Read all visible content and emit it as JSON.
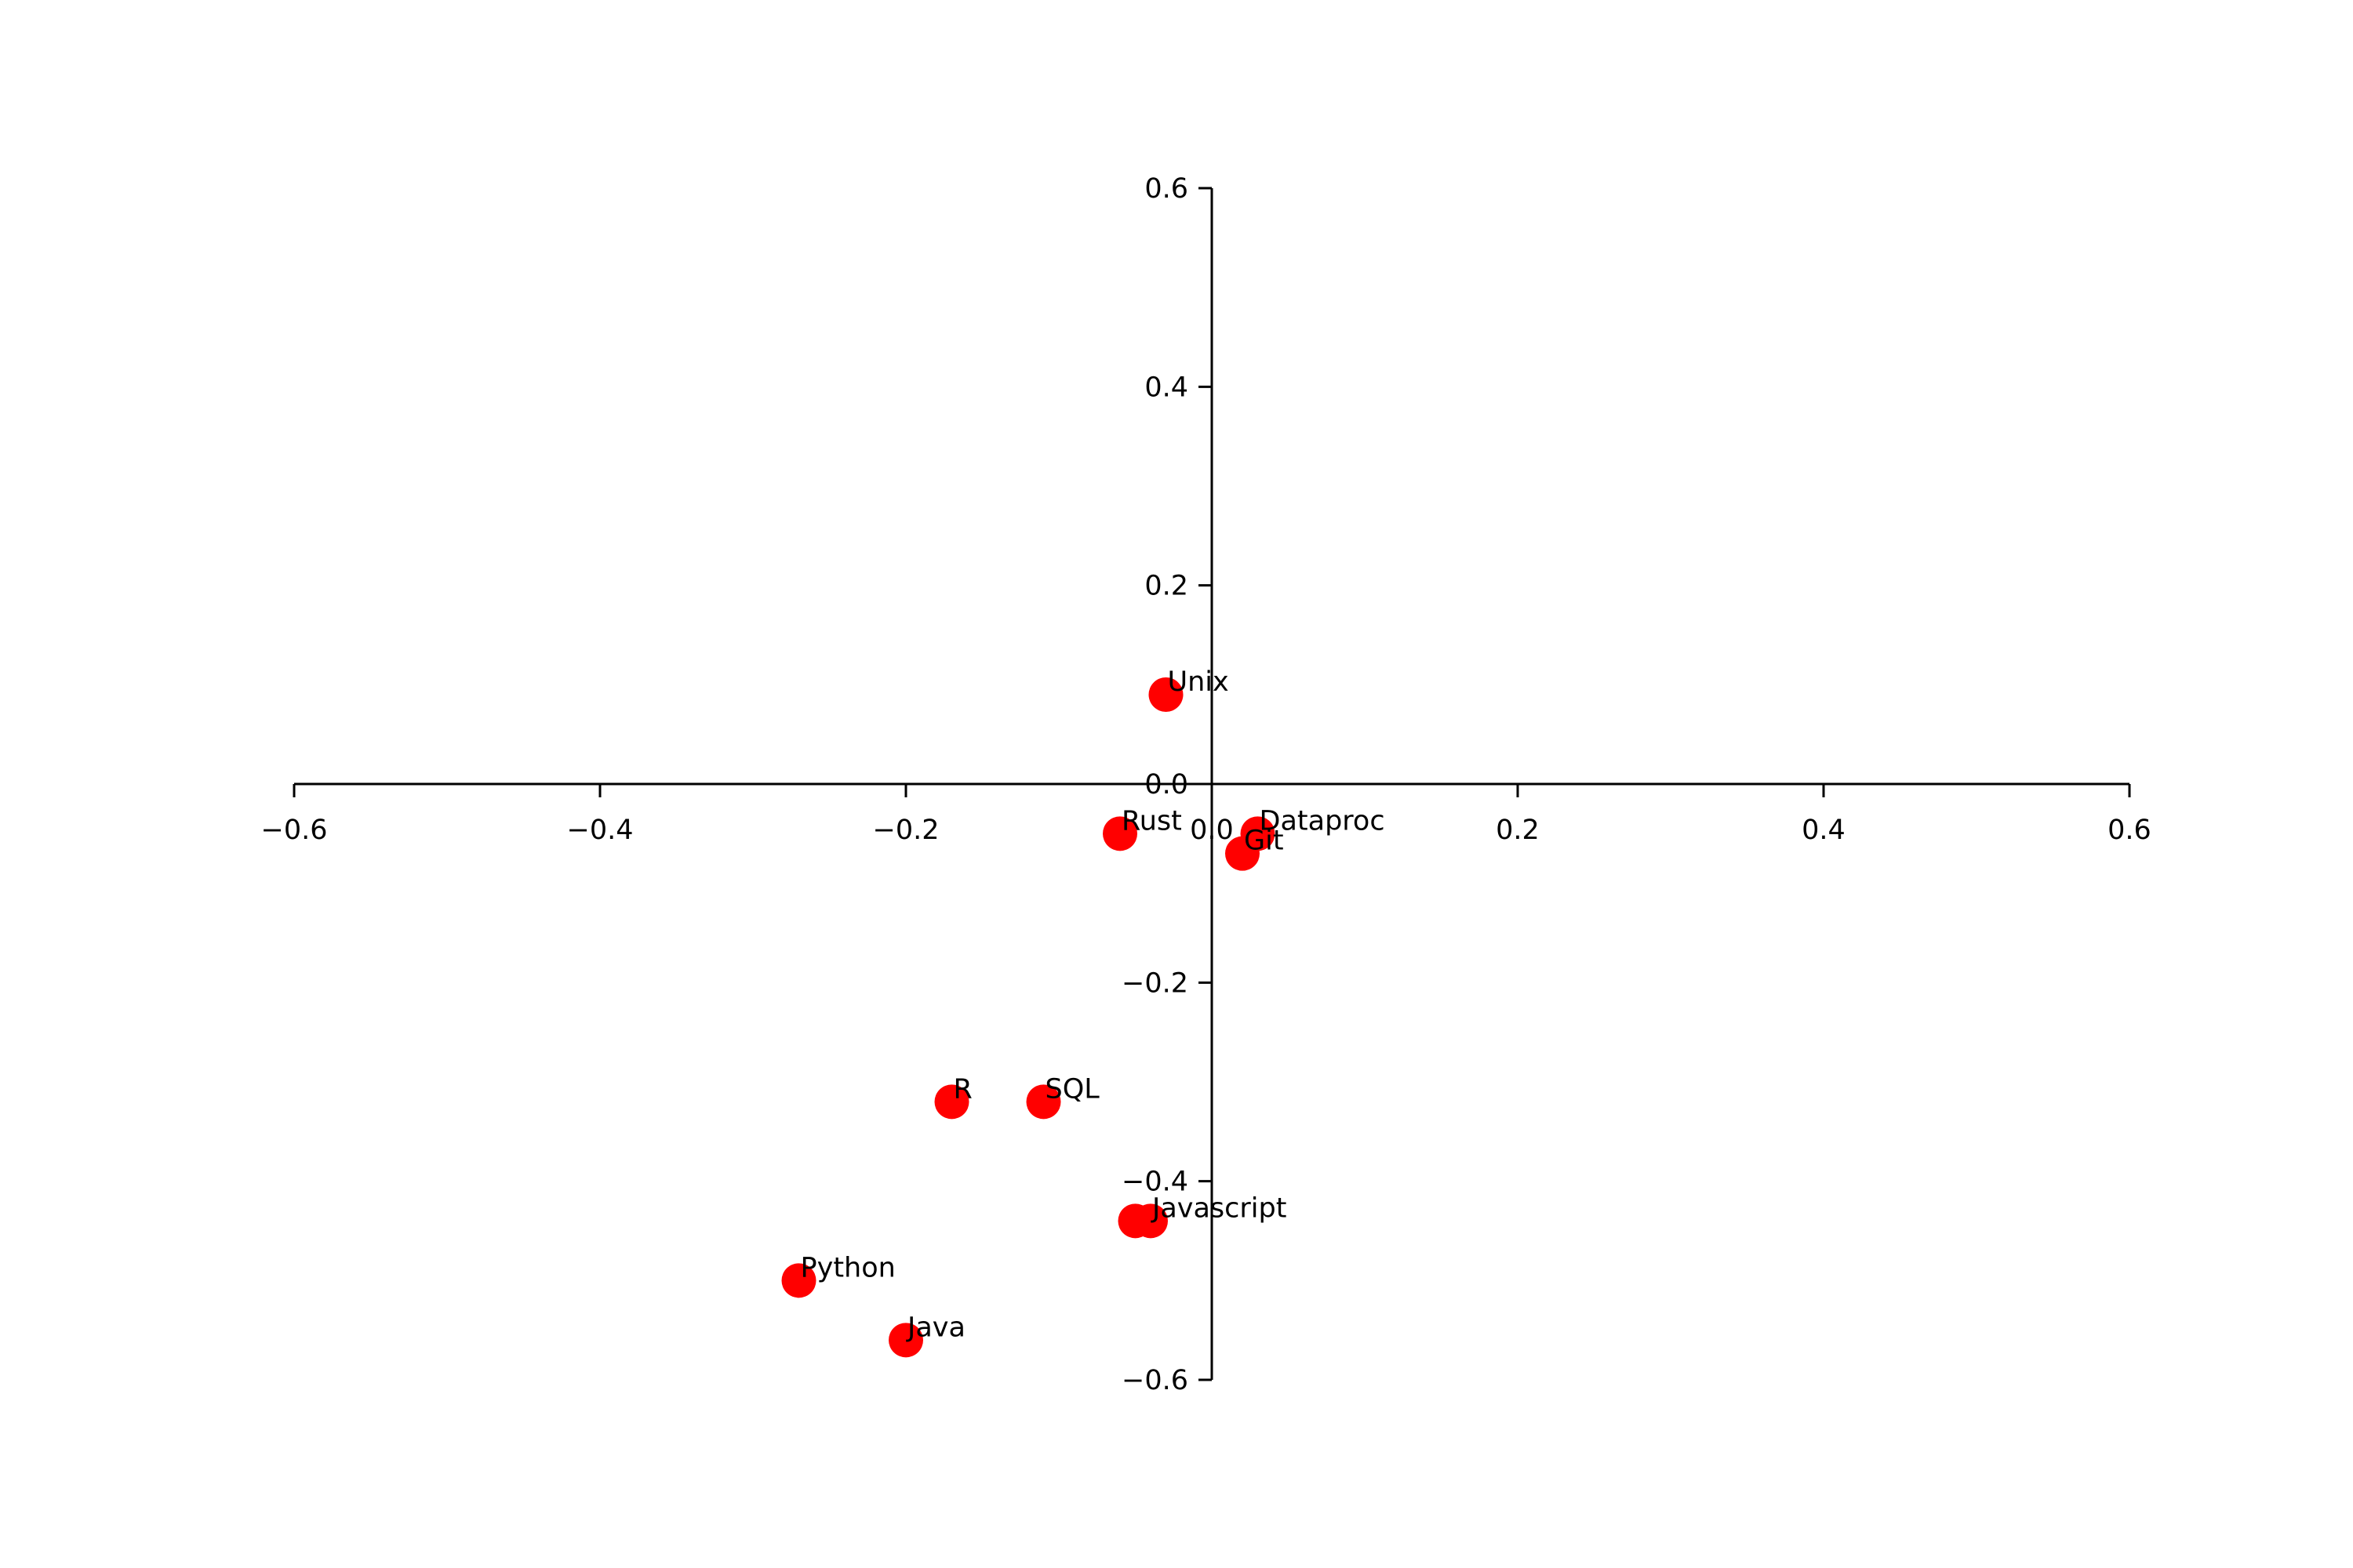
{
  "chart_data": {
    "type": "scatter",
    "title": "",
    "xlabel": "",
    "ylabel": "",
    "xlim": [
      -0.6,
      0.6
    ],
    "ylim": [
      -0.6,
      0.6
    ],
    "grid": false,
    "spines": "centered at origin",
    "marker_color": "#ff0000",
    "x_ticks": [
      {
        "value": -0.6,
        "label": "−0.6"
      },
      {
        "value": -0.4,
        "label": "−0.4"
      },
      {
        "value": -0.2,
        "label": "−0.2"
      },
      {
        "value": 0.0,
        "label": "0.0"
      },
      {
        "value": 0.2,
        "label": "0.2"
      },
      {
        "value": 0.4,
        "label": "0.4"
      },
      {
        "value": 0.6,
        "label": "0.6"
      }
    ],
    "y_ticks": [
      {
        "value": -0.6,
        "label": "−0.6"
      },
      {
        "value": -0.4,
        "label": "−0.4"
      },
      {
        "value": -0.2,
        "label": "−0.2"
      },
      {
        "value": 0.0,
        "label": "0.0"
      },
      {
        "value": 0.2,
        "label": "0.2"
      },
      {
        "value": 0.4,
        "label": "0.4"
      },
      {
        "value": 0.6,
        "label": "0.6"
      }
    ],
    "points": [
      {
        "label": "Unix",
        "x": -0.03,
        "y": 0.09
      },
      {
        "label": "Rust",
        "x": -0.06,
        "y": -0.05
      },
      {
        "label": "Dataproc",
        "x": 0.03,
        "y": -0.05
      },
      {
        "label": "Git",
        "x": 0.02,
        "y": -0.07
      },
      {
        "label": "R",
        "x": -0.17,
        "y": -0.32
      },
      {
        "label": "SQL",
        "x": -0.11,
        "y": -0.32
      },
      {
        "label": "",
        "x": -0.05,
        "y": -0.44
      },
      {
        "label": "Javascript",
        "x": -0.04,
        "y": -0.44
      },
      {
        "label": "Python",
        "x": -0.27,
        "y": -0.5
      },
      {
        "label": "Java",
        "x": -0.2,
        "y": -0.56
      }
    ]
  }
}
